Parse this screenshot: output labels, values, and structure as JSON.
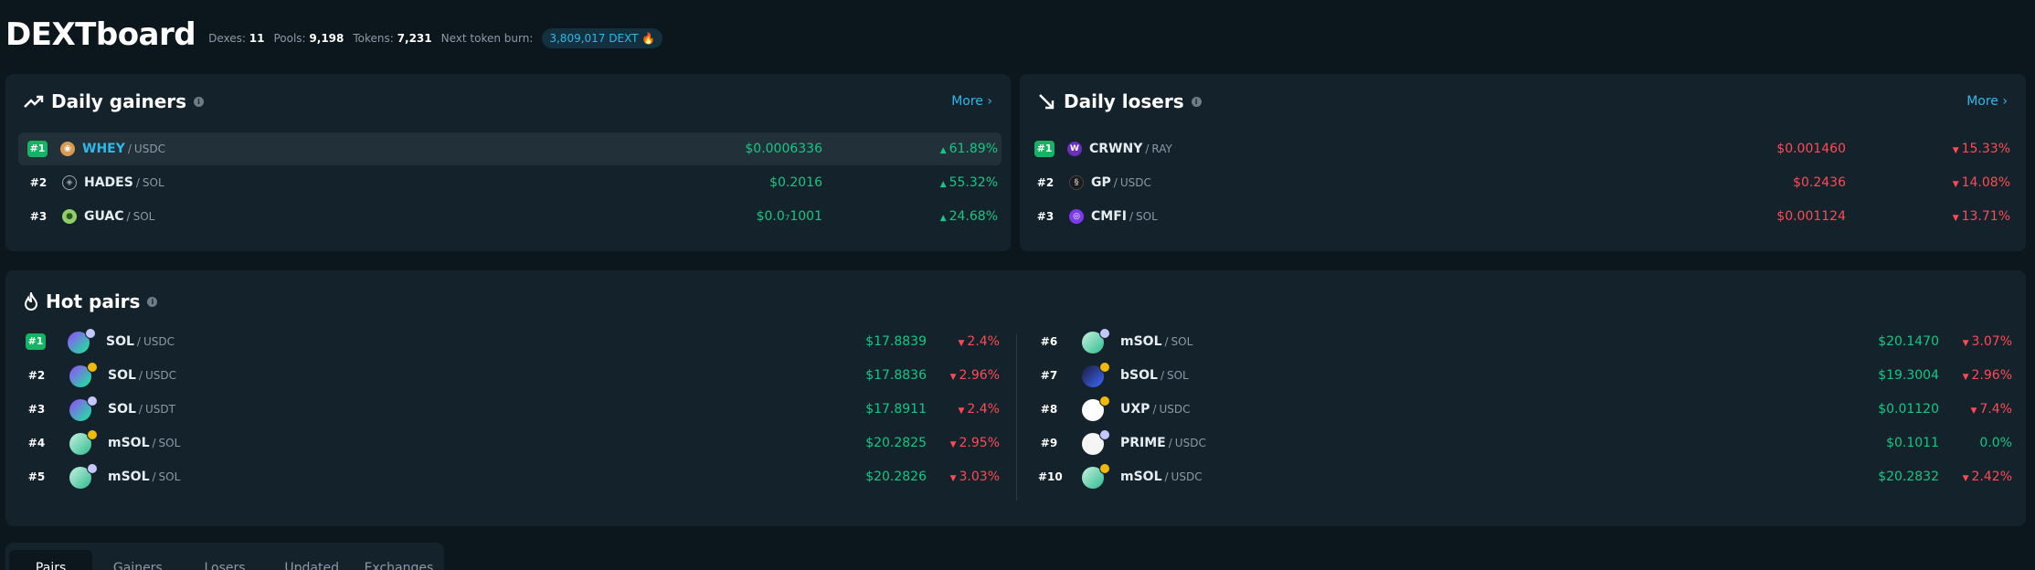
{
  "header": {
    "title": "DEXTboard",
    "stats": [
      {
        "label": "Dexes:",
        "value": "11"
      },
      {
        "label": "Pools:",
        "value": "9,198"
      },
      {
        "label": "Tokens:",
        "value": "7,231"
      }
    ],
    "burn_label": "Next token burn:",
    "burn_value": "3,809,017 DEXT"
  },
  "gainers": {
    "title": "Daily gainers",
    "more": "More",
    "rows": [
      {
        "rank": "#1",
        "base": "WHEY",
        "quote": "USDC",
        "price": "$0.0006336",
        "change": "61.89%"
      },
      {
        "rank": "#2",
        "base": "HADES",
        "quote": "SOL",
        "price": "$0.2016",
        "change": "55.32%"
      },
      {
        "rank": "#3",
        "base": "GUAC",
        "quote": "SOL",
        "price": "$0.0₇1001",
        "change": "24.68%"
      }
    ]
  },
  "losers": {
    "title": "Daily losers",
    "more": "More",
    "rows": [
      {
        "rank": "#1",
        "base": "CRWNY",
        "quote": "RAY",
        "price": "$0.001460",
        "change": "15.33%"
      },
      {
        "rank": "#2",
        "base": "GP",
        "quote": "USDC",
        "price": "$0.2436",
        "change": "14.08%"
      },
      {
        "rank": "#3",
        "base": "CMFI",
        "quote": "SOL",
        "price": "$0.001124",
        "change": "13.71%"
      }
    ]
  },
  "hot": {
    "title": "Hot pairs",
    "left": [
      {
        "rank": "#1",
        "base": "SOL",
        "quote": "USDC",
        "price": "$17.8839",
        "change": "2.4%",
        "dir": "down"
      },
      {
        "rank": "#2",
        "base": "SOL",
        "quote": "USDC",
        "price": "$17.8836",
        "change": "2.96%",
        "dir": "down"
      },
      {
        "rank": "#3",
        "base": "SOL",
        "quote": "USDT",
        "price": "$17.8911",
        "change": "2.4%",
        "dir": "down"
      },
      {
        "rank": "#4",
        "base": "mSOL",
        "quote": "SOL",
        "price": "$20.2825",
        "change": "2.95%",
        "dir": "down"
      },
      {
        "rank": "#5",
        "base": "mSOL",
        "quote": "SOL",
        "price": "$20.2826",
        "change": "3.03%",
        "dir": "down"
      }
    ],
    "right": [
      {
        "rank": "#6",
        "base": "mSOL",
        "quote": "SOL",
        "price": "$20.1470",
        "change": "3.07%",
        "dir": "down"
      },
      {
        "rank": "#7",
        "base": "bSOL",
        "quote": "SOL",
        "price": "$19.3004",
        "change": "2.96%",
        "dir": "down"
      },
      {
        "rank": "#8",
        "base": "UXP",
        "quote": "USDC",
        "price": "$0.01120",
        "change": "7.4%",
        "dir": "down"
      },
      {
        "rank": "#9",
        "base": "PRIME",
        "quote": "USDC",
        "price": "$0.1011",
        "change": "0.0%",
        "dir": "flat"
      },
      {
        "rank": "#10",
        "base": "mSOL",
        "quote": "USDC",
        "price": "$20.2832",
        "change": "2.42%",
        "dir": "down"
      }
    ]
  },
  "tabs": [
    "Pairs",
    "Gainers",
    "Losers",
    "Updated",
    "Exchanges"
  ],
  "colors": {
    "accent": "#2fb8e8",
    "up": "#16c784",
    "down": "#ff4a55",
    "rank_badge": "#16b364"
  }
}
